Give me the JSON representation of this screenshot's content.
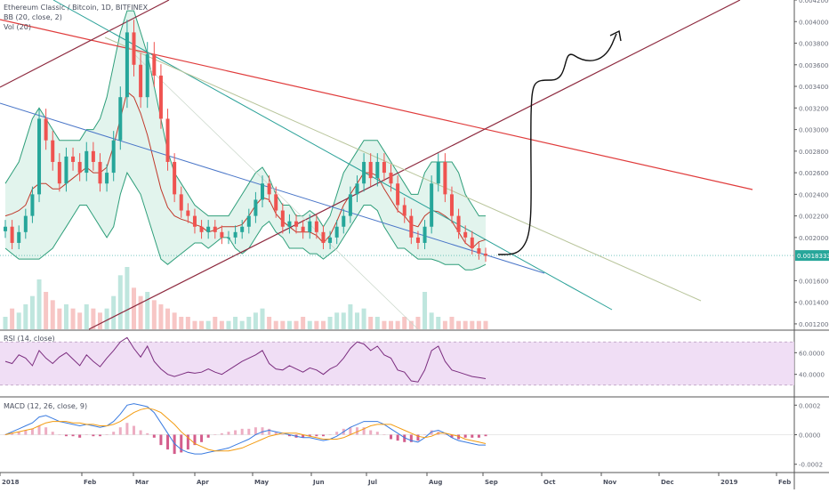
{
  "header": {
    "title": "Ethereum Classic / Bitcoin, 1D, BITFINEX",
    "bb_label": "BB (20, close, 2)",
    "vol_label": "Vol (20)",
    "rsi_label": "RSI (14, close)",
    "macd_label": "MACD (12, 26, close, 9)"
  },
  "colors": {
    "up": "#26a69a",
    "down": "#ef5350",
    "bb_band": "#2e9e7a",
    "bb_fill": "#d6efe6",
    "bb_basis": "#c0392b",
    "red_line": "#e03c3c",
    "purple_line": "#8e2a3f",
    "blue_line": "#4a76c8",
    "teal_line": "#2aa198",
    "olive_line": "#b8c49a",
    "rsi": "#7b2d7f",
    "rsi_fill": "#ecd6f3",
    "macd": "#3a7be0",
    "signal": "#f39c12",
    "price_tag": "#26a69a"
  },
  "chart_data": [
    {
      "type": "line",
      "name": "price",
      "ylim": [
        0.00115,
        0.0042
      ],
      "y_ticks": [
        "0.0042000",
        "0.0040000",
        "0.0038000",
        "0.0036000",
        "0.0034000",
        "0.0032000",
        "0.0030000",
        "0.0028000",
        "0.0026000",
        "0.0024000",
        "0.0022000",
        "0.0020000",
        "0.0018333",
        "0.0016000",
        "0.0014000",
        "0.0012000"
      ],
      "x_labels": [
        "2018",
        "Feb",
        "Mar",
        "Apr",
        "May",
        "Jun",
        "Jul",
        "Aug",
        "Sep",
        "Oct",
        "Nov",
        "Dec",
        "2019",
        "Feb"
      ],
      "last_price": "0.0018333",
      "close": [
        0.0021,
        0.00195,
        0.00205,
        0.0022,
        0.0024,
        0.0031,
        0.0029,
        0.0027,
        0.0025,
        0.00275,
        0.0027,
        0.0026,
        0.0028,
        0.0027,
        0.0025,
        0.0026,
        0.0029,
        0.0033,
        0.0039,
        0.0036,
        0.0033,
        0.0037,
        0.0035,
        0.0031,
        0.0027,
        0.0024,
        0.00225,
        0.0022,
        0.0021,
        0.00205,
        0.0021,
        0.00205,
        0.002,
        0.002,
        0.00205,
        0.0021,
        0.0022,
        0.00235,
        0.0025,
        0.0024,
        0.00225,
        0.0021,
        0.00215,
        0.0021,
        0.00205,
        0.00215,
        0.00205,
        0.00195,
        0.002,
        0.0021,
        0.0022,
        0.0024,
        0.0025,
        0.0027,
        0.00255,
        0.0027,
        0.0026,
        0.0025,
        0.0023,
        0.0022,
        0.002,
        0.00195,
        0.0021,
        0.0025,
        0.0027,
        0.0024,
        0.0022,
        0.00205,
        0.002,
        0.0019,
        0.00185,
        0.00183
      ],
      "bb_upper": [
        0.0025,
        0.0026,
        0.0027,
        0.0029,
        0.0031,
        0.0032,
        0.0031,
        0.003,
        0.0029,
        0.0029,
        0.0029,
        0.0029,
        0.003,
        0.003,
        0.0031,
        0.0033,
        0.0036,
        0.0039,
        0.0041,
        0.0041,
        0.0039,
        0.0037,
        0.0034,
        0.0031,
        0.0028,
        0.0026,
        0.0025,
        0.0024,
        0.0023,
        0.00225,
        0.0022,
        0.0022,
        0.0022,
        0.0022,
        0.0023,
        0.0024,
        0.0025,
        0.0026,
        0.00265,
        0.00255,
        0.0024,
        0.0023,
        0.0023,
        0.0022,
        0.0022,
        0.00225,
        0.0022,
        0.0021,
        0.0022,
        0.0024,
        0.0026,
        0.0027,
        0.0028,
        0.0029,
        0.0029,
        0.0029,
        0.0028,
        0.0027,
        0.0026,
        0.0025,
        0.0024,
        0.0024,
        0.0026,
        0.0027,
        0.0027,
        0.0027,
        0.0027,
        0.0026,
        0.0024,
        0.0023,
        0.0022,
        0.0022
      ],
      "bb_lower": [
        0.0019,
        0.00185,
        0.0018,
        0.0018,
        0.0018,
        0.0018,
        0.00185,
        0.0019,
        0.002,
        0.0021,
        0.0022,
        0.0023,
        0.0023,
        0.0022,
        0.0021,
        0.002,
        0.0021,
        0.0024,
        0.0026,
        0.0025,
        0.0024,
        0.0022,
        0.002,
        0.0018,
        0.00175,
        0.0018,
        0.00185,
        0.0019,
        0.00195,
        0.00195,
        0.0019,
        0.00195,
        0.002,
        0.002,
        0.0019,
        0.00185,
        0.0019,
        0.002,
        0.0021,
        0.00215,
        0.00205,
        0.002,
        0.0019,
        0.0019,
        0.0019,
        0.00185,
        0.00185,
        0.0018,
        0.00185,
        0.0019,
        0.002,
        0.0021,
        0.0022,
        0.0023,
        0.0023,
        0.00225,
        0.0021,
        0.002,
        0.0019,
        0.0019,
        0.00185,
        0.0018,
        0.0018,
        0.0018,
        0.00178,
        0.00175,
        0.00175,
        0.00175,
        0.0017,
        0.0017,
        0.00172,
        0.00175
      ],
      "bb_basis": [
        0.0022,
        0.00222,
        0.00225,
        0.0023,
        0.00245,
        0.0025,
        0.0025,
        0.00245,
        0.00245,
        0.0025,
        0.00255,
        0.0026,
        0.00265,
        0.0026,
        0.0026,
        0.00265,
        0.00285,
        0.0031,
        0.00335,
        0.0033,
        0.00315,
        0.00295,
        0.0027,
        0.00245,
        0.00228,
        0.0022,
        0.00217,
        0.00215,
        0.00212,
        0.0021,
        0.00205,
        0.00207,
        0.0021,
        0.0021,
        0.0021,
        0.00212,
        0.0022,
        0.0023,
        0.00237,
        0.00235,
        0.00222,
        0.00215,
        0.0021,
        0.00205,
        0.00205,
        0.00205,
        0.00202,
        0.00195,
        0.00202,
        0.00215,
        0.0023,
        0.0024,
        0.0025,
        0.0026,
        0.0026,
        0.00257,
        0.00245,
        0.00235,
        0.00225,
        0.0022,
        0.00212,
        0.0021,
        0.0022,
        0.00225,
        0.00224,
        0.0022,
        0.00215,
        0.00205,
        0.00195,
        0.0019,
        0.00196,
        0.00198
      ]
    },
    {
      "type": "bar",
      "name": "volume",
      "values": [
        3,
        5,
        4,
        6,
        8,
        12,
        9,
        7,
        5,
        6,
        5,
        4,
        6,
        5,
        4,
        5,
        8,
        13,
        15,
        10,
        8,
        9,
        7,
        6,
        5,
        4,
        3,
        3,
        2,
        2,
        2,
        3,
        2,
        2,
        3,
        2,
        3,
        4,
        5,
        3,
        2,
        2,
        2,
        2,
        3,
        2,
        2,
        2,
        3,
        4,
        4,
        6,
        4,
        5,
        3,
        3,
        2,
        2,
        2,
        3,
        2,
        3,
        9,
        4,
        3,
        2,
        3,
        2,
        2,
        2,
        2,
        2
      ]
    },
    {
      "type": "line",
      "name": "RSI",
      "ylim": [
        20,
        80
      ],
      "y_ticks": [
        "60.0000",
        "40.0000"
      ],
      "values": [
        52,
        50,
        58,
        55,
        48,
        62,
        55,
        50,
        56,
        60,
        54,
        48,
        58,
        52,
        47,
        55,
        62,
        70,
        74,
        64,
        56,
        66,
        52,
        45,
        40,
        38,
        40,
        42,
        41,
        42,
        45,
        42,
        40,
        44,
        48,
        52,
        55,
        58,
        62,
        50,
        45,
        44,
        48,
        45,
        42,
        46,
        44,
        40,
        45,
        48,
        55,
        64,
        70,
        68,
        62,
        66,
        58,
        55,
        44,
        42,
        34,
        33,
        44,
        62,
        66,
        52,
        44,
        42,
        40,
        38,
        37,
        36
      ]
    },
    {
      "type": "line",
      "name": "MACD",
      "ylim": [
        -0.00025,
        0.00025
      ],
      "y_ticks": [
        "0.0002",
        "0.0000",
        "-0.0002"
      ],
      "macd": [
        0,
        2e-05,
        4e-05,
        6e-05,
        8e-05,
        0.00012,
        0.00013,
        0.00011,
        9e-05,
        8e-05,
        7e-05,
        6e-05,
        7e-05,
        6e-05,
        5e-05,
        6e-05,
        9e-05,
        0.00014,
        0.0002,
        0.00021,
        0.0002,
        0.00019,
        0.00015,
        8e-05,
        1e-05,
        -6e-05,
        -0.0001,
        -0.00012,
        -0.00013,
        -0.00013,
        -0.00012,
        -0.00011,
        -0.0001,
        -9e-05,
        -7e-05,
        -5e-05,
        -3e-05,
        0,
        2e-05,
        3e-05,
        2e-05,
        1e-05,
        0,
        -1e-05,
        -2e-05,
        -2e-05,
        -3e-05,
        -4e-05,
        -3e-05,
        -1e-05,
        2e-05,
        5e-05,
        7e-05,
        9e-05,
        9e-05,
        9e-05,
        7e-05,
        4e-05,
        1e-05,
        -2e-05,
        -4e-05,
        -5e-05,
        -2e-05,
        2e-05,
        3e-05,
        1e-05,
        -2e-05,
        -4e-05,
        -5e-05,
        -6e-05,
        -7e-05,
        -7e-05
      ],
      "signal": [
        0,
        1e-05,
        2e-05,
        3e-05,
        4e-05,
        6e-05,
        8e-05,
        9e-05,
        9e-05,
        9e-05,
        8e-05,
        8e-05,
        7e-05,
        7e-05,
        6e-05,
        6e-05,
        7e-05,
        9e-05,
        0.00012,
        0.00015,
        0.00017,
        0.00018,
        0.00017,
        0.00015,
        0.00011,
        7e-05,
        2e-05,
        -2e-05,
        -6e-05,
        -8e-05,
        -0.0001,
        -0.00011,
        -0.00011,
        -0.00011,
        -0.0001,
        -9e-05,
        -7e-05,
        -5e-05,
        -3e-05,
        -1e-05,
        0,
        1e-05,
        1e-05,
        1e-05,
        0,
        -1e-05,
        -2e-05,
        -3e-05,
        -3e-05,
        -3e-05,
        -2e-05,
        0,
        2e-05,
        4e-05,
        6e-05,
        7e-05,
        7e-05,
        7e-05,
        5e-05,
        3e-05,
        1e-05,
        -1e-05,
        -2e-05,
        -1e-05,
        1e-05,
        1e-05,
        0,
        -1e-05,
        -3e-05,
        -4e-05,
        -5e-05,
        -6e-05
      ]
    }
  ]
}
